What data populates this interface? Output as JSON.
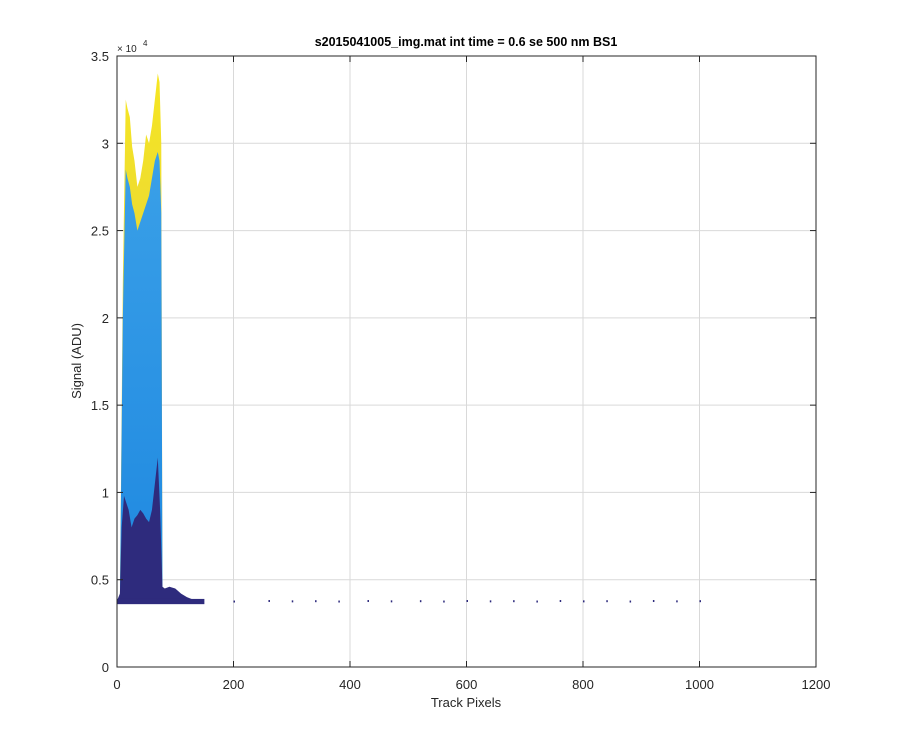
{
  "chart_data": {
    "type": "area",
    "title": "s2015041005_img.mat int time = 0.6 se  500 nm BS1",
    "xlabel": "Track Pixels",
    "ylabel": "Signal (ADU)",
    "y_exponent_base": "× 10",
    "y_exponent_power": "4",
    "xlim": [
      0,
      1200
    ],
    "ylim": [
      0,
      35000
    ],
    "x_ticks": [
      0,
      200,
      400,
      600,
      800,
      1000,
      1200
    ],
    "x_tick_labels": [
      "0",
      "200",
      "400",
      "600",
      "800",
      "1000",
      "1200"
    ],
    "y_ticks": [
      0,
      5000,
      10000,
      15000,
      20000,
      25000,
      30000,
      35000
    ],
    "y_tick_labels": [
      "0",
      "0.5",
      "1",
      "1.5",
      "2",
      "2.5",
      "3",
      "3.5"
    ],
    "grid": true,
    "colors": {
      "low": "#2e2b7d",
      "mid": "#1e88e0",
      "mid_light": "#3aa0e8",
      "high": "#d8c257",
      "top": "#f6e622",
      "axis": "#262626",
      "grid": "#d9d9d9"
    },
    "series": [
      {
        "x": [
          0,
          5,
          10,
          15,
          18,
          22,
          26,
          30,
          35,
          40,
          45,
          50,
          55,
          60,
          65,
          70,
          73,
          76,
          78
        ],
        "values": [
          3800,
          3900,
          22000,
          32500,
          32000,
          31500,
          29800,
          29000,
          27500,
          28000,
          29000,
          30500,
          30000,
          31000,
          32500,
          34000,
          33500,
          30000,
          5000
        ]
      },
      {
        "x": [
          0,
          5,
          10,
          15,
          18,
          22,
          26,
          30,
          35,
          40,
          45,
          50,
          55,
          60,
          65,
          70,
          73,
          76,
          78
        ],
        "values": [
          3800,
          3900,
          20000,
          28500,
          28000,
          27500,
          26500,
          26000,
          25000,
          25500,
          26000,
          26500,
          27000,
          28000,
          29000,
          29500,
          29000,
          26000,
          5000
        ]
      },
      {
        "x": [
          0,
          5,
          8,
          12,
          15,
          20,
          25,
          30,
          35,
          40,
          45,
          50,
          55,
          60,
          65,
          70,
          74,
          78,
          82,
          90,
          100,
          110,
          120,
          135,
          150
        ],
        "values": [
          3800,
          4200,
          8000,
          9800,
          9500,
          9000,
          8000,
          8500,
          8700,
          9000,
          8800,
          8500,
          8300,
          9000,
          10500,
          12000,
          9000,
          4600,
          4500,
          4600,
          4500,
          4200,
          4000,
          3800,
          3700
        ]
      },
      {
        "x": [
          200,
          260,
          300,
          340,
          380,
          430,
          470,
          520,
          560,
          600,
          640,
          680,
          720,
          760,
          800,
          840,
          880,
          920,
          960,
          1000
        ],
        "values": [
          3750,
          3780,
          3760,
          3770,
          3750,
          3780,
          3760,
          3770,
          3750,
          3780,
          3760,
          3770,
          3750,
          3780,
          3760,
          3770,
          3750,
          3780,
          3760,
          3770
        ]
      }
    ]
  }
}
